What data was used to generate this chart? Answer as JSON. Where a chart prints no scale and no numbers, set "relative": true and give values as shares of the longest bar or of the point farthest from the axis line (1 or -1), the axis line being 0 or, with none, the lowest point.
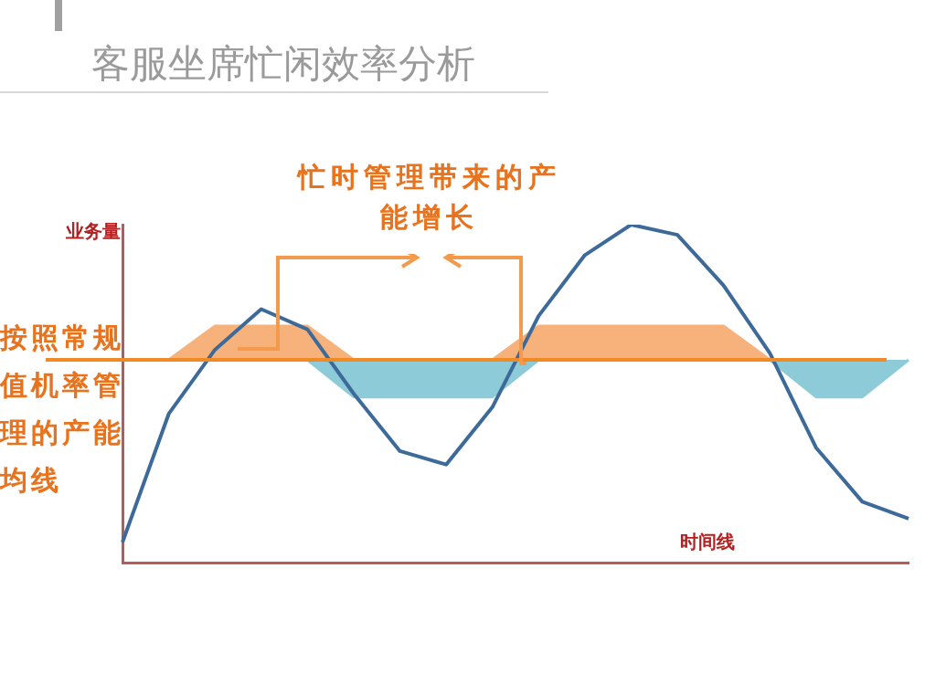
{
  "chart_data": {
    "type": "line",
    "title": "客服坐席忙闲效率分析",
    "ylabel": "业务量",
    "xlabel": "时间线",
    "relative": true,
    "legend": false,
    "grid": false,
    "marker": "none",
    "categories": [
      null,
      null,
      null,
      null,
      null,
      null,
      null,
      null,
      null,
      null,
      null,
      null,
      null,
      null,
      null,
      null,
      null,
      null
    ],
    "series": [
      {
        "type": "area",
        "color": "#f6b27a",
        "values": [
          null,
          0.6,
          0.7,
          0.7,
          0.7,
          0.6,
          null,
          null,
          null,
          null,
          null,
          null,
          null,
          null,
          null,
          null,
          null,
          null
        ]
      },
      {
        "type": "area",
        "color": "#f6b27a",
        "values": [
          null,
          null,
          null,
          null,
          null,
          null,
          null,
          null,
          0.6,
          0.7,
          0.7,
          0.7,
          0.7,
          0.7,
          0.6,
          null,
          null,
          null
        ]
      },
      {
        "type": "area",
        "color": "#8ecbd9",
        "values": [
          null,
          null,
          null,
          null,
          0.6,
          0.49,
          0.49,
          0.49,
          0.49,
          0.6,
          null,
          null,
          null,
          null,
          null,
          null,
          null,
          null
        ]
      },
      {
        "type": "area",
        "color": "#8ecbd9",
        "values": [
          null,
          null,
          null,
          null,
          null,
          null,
          null,
          null,
          null,
          null,
          null,
          null,
          null,
          null,
          0.6,
          0.49,
          0.49,
          0.6
        ]
      },
      {
        "color": "#3d6a99",
        "values": [
          0.06,
          0.44,
          0.63,
          0.75,
          0.69,
          0.5,
          0.33,
          0.29,
          0.46,
          0.73,
          0.91,
          1,
          0.97,
          0.82,
          0.62,
          0.34,
          0.18,
          0.13
        ]
      }
    ],
    "ref_lines": [
      {
        "axis": "y",
        "value": 0.6,
        "label": "按照常规值机率管理的产能均线",
        "color": "#f08a24"
      }
    ],
    "annotations": [
      "忙时管理带来的产能增长"
    ]
  }
}
